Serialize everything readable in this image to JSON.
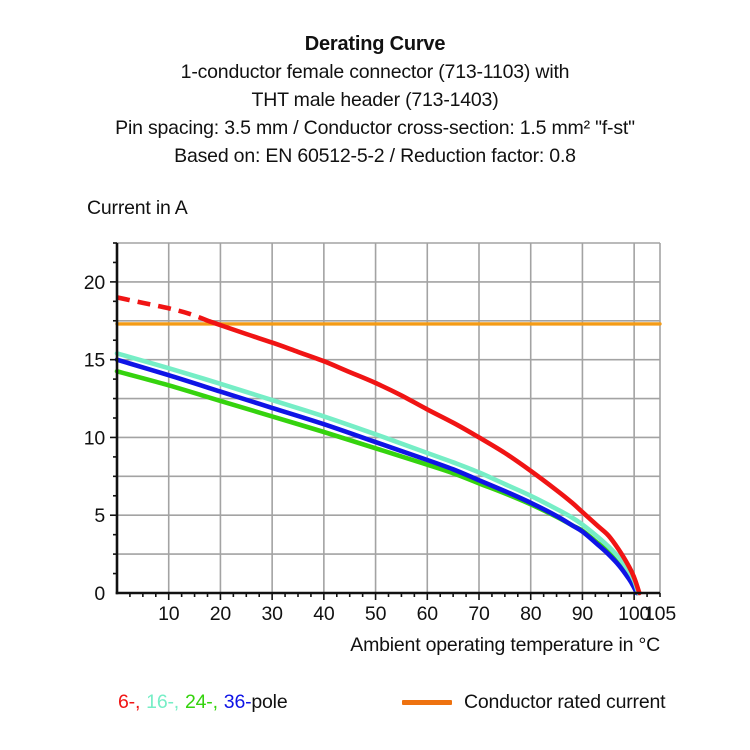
{
  "title": {
    "heading": "Derating Curve",
    "lines": [
      "1-conductor female connector (713-1103) with",
      "THT male header (713-1403)",
      "Pin spacing: 3.5 mm / Conductor cross-section: 1.5 mm² \"f-st\"",
      "Based on: EN 60512-5-2 / Reduction factor: 0.8"
    ]
  },
  "chart_data": {
    "type": "line",
    "title": "Derating Curve",
    "ylabel": "Current in A",
    "xlabel": "Ambient operating temperature in °C",
    "xlim": [
      0,
      105
    ],
    "ylim": [
      0,
      22.5
    ],
    "grid": true,
    "x_grid_step": 10,
    "y_grid_step": 2.5,
    "x_major_ticks": [
      10,
      20,
      30,
      40,
      50,
      60,
      70,
      80,
      90,
      100,
      105
    ],
    "x_minor_step": 2.5,
    "y_major_ticks": [
      0,
      5,
      10,
      15,
      20
    ],
    "y_minor_step": 1.25,
    "legend_position": "bottom",
    "colors": {
      "grid": "#a3a3a3",
      "axis": "#111111",
      "text": "#111111"
    },
    "series": [
      {
        "name": "Conductor rated current",
        "color": "#f49b16",
        "width": 3.4,
        "segments": [
          {
            "style": "solid",
            "points": [
              [
                0,
                17.3
              ],
              [
                105,
                17.3
              ]
            ]
          }
        ]
      },
      {
        "name": "24-pole",
        "color": "#35d30e",
        "width": 4.6,
        "segments": [
          {
            "style": "solid",
            "points": [
              [
                0,
                14.25
              ],
              [
                10,
                13.35
              ],
              [
                20,
                12.35
              ],
              [
                30,
                11.35
              ],
              [
                40,
                10.35
              ],
              [
                50,
                9.3
              ],
              [
                60,
                8.25
              ],
              [
                65,
                7.7
              ],
              [
                70,
                7.05
              ],
              [
                75,
                6.4
              ],
              [
                80,
                5.7
              ],
              [
                85,
                4.9
              ],
              [
                88,
                4.35
              ],
              [
                90,
                4.0
              ],
              [
                93,
                3.2
              ],
              [
                95,
                2.65
              ],
              [
                97,
                1.95
              ],
              [
                99,
                1.05
              ],
              [
                100,
                0.5
              ],
              [
                100.6,
                0
              ]
            ]
          }
        ]
      },
      {
        "name": "36-pole",
        "color": "#0f14e6",
        "width": 4.6,
        "segments": [
          {
            "style": "solid",
            "points": [
              [
                0,
                15.0
              ],
              [
                10,
                14.0
              ],
              [
                20,
                12.95
              ],
              [
                30,
                11.9
              ],
              [
                40,
                10.85
              ],
              [
                50,
                9.7
              ],
              [
                60,
                8.55
              ],
              [
                65,
                7.95
              ],
              [
                70,
                7.25
              ],
              [
                75,
                6.55
              ],
              [
                80,
                5.8
              ],
              [
                85,
                4.95
              ],
              [
                88,
                4.35
              ],
              [
                90,
                3.95
              ],
              [
                93,
                3.1
              ],
              [
                95,
                2.5
              ],
              [
                97,
                1.8
              ],
              [
                99,
                0.9
              ],
              [
                100,
                0.35
              ],
              [
                100.5,
                0
              ]
            ]
          }
        ]
      },
      {
        "name": "16-pole",
        "color": "#76eec6",
        "width": 4.6,
        "segments": [
          {
            "style": "solid",
            "points": [
              [
                0,
                15.4
              ],
              [
                10,
                14.45
              ],
              [
                20,
                13.45
              ],
              [
                30,
                12.4
              ],
              [
                40,
                11.35
              ],
              [
                50,
                10.2
              ],
              [
                60,
                9.0
              ],
              [
                65,
                8.4
              ],
              [
                70,
                7.75
              ],
              [
                75,
                7.0
              ],
              [
                80,
                6.25
              ],
              [
                85,
                5.4
              ],
              [
                88,
                4.85
              ],
              [
                90,
                4.4
              ],
              [
                93,
                3.6
              ],
              [
                95,
                3.0
              ],
              [
                97,
                2.3
              ],
              [
                99,
                1.4
              ],
              [
                100,
                0.8
              ],
              [
                100.8,
                0
              ]
            ]
          }
        ]
      },
      {
        "name": "6-pole",
        "color": "#f01414",
        "width": 4.6,
        "segments": [
          {
            "style": "dashed",
            "points": [
              [
                0,
                19.0
              ],
              [
                5,
                18.65
              ],
              [
                10,
                18.3
              ],
              [
                14,
                17.95
              ],
              [
                18,
                17.45
              ]
            ]
          },
          {
            "style": "solid",
            "points": [
              [
                18,
                17.45
              ],
              [
                25,
                16.65
              ],
              [
                30,
                16.1
              ],
              [
                35,
                15.5
              ],
              [
                40,
                14.9
              ],
              [
                45,
                14.2
              ],
              [
                50,
                13.5
              ],
              [
                55,
                12.7
              ],
              [
                60,
                11.8
              ],
              [
                65,
                10.95
              ],
              [
                70,
                10.0
              ],
              [
                75,
                9.0
              ],
              [
                80,
                7.85
              ],
              [
                85,
                6.6
              ],
              [
                88,
                5.8
              ],
              [
                90,
                5.2
              ],
              [
                93,
                4.3
              ],
              [
                95,
                3.7
              ],
              [
                97,
                2.8
              ],
              [
                99,
                1.7
              ],
              [
                100,
                1.0
              ],
              [
                101,
                0
              ]
            ]
          }
        ]
      }
    ]
  },
  "legend": {
    "pole_items": [
      {
        "label": "6-,",
        "color": "#f01414"
      },
      {
        "label": "16-,",
        "color": "#76eec6"
      },
      {
        "label": "24-,",
        "color": "#35d30e"
      },
      {
        "label": "36-",
        "color": "#0f14e6"
      },
      {
        "label": "pole",
        "color": "#111111"
      }
    ],
    "conductor": {
      "label": "Conductor rated current",
      "swatch_color": "#ee7210"
    }
  }
}
